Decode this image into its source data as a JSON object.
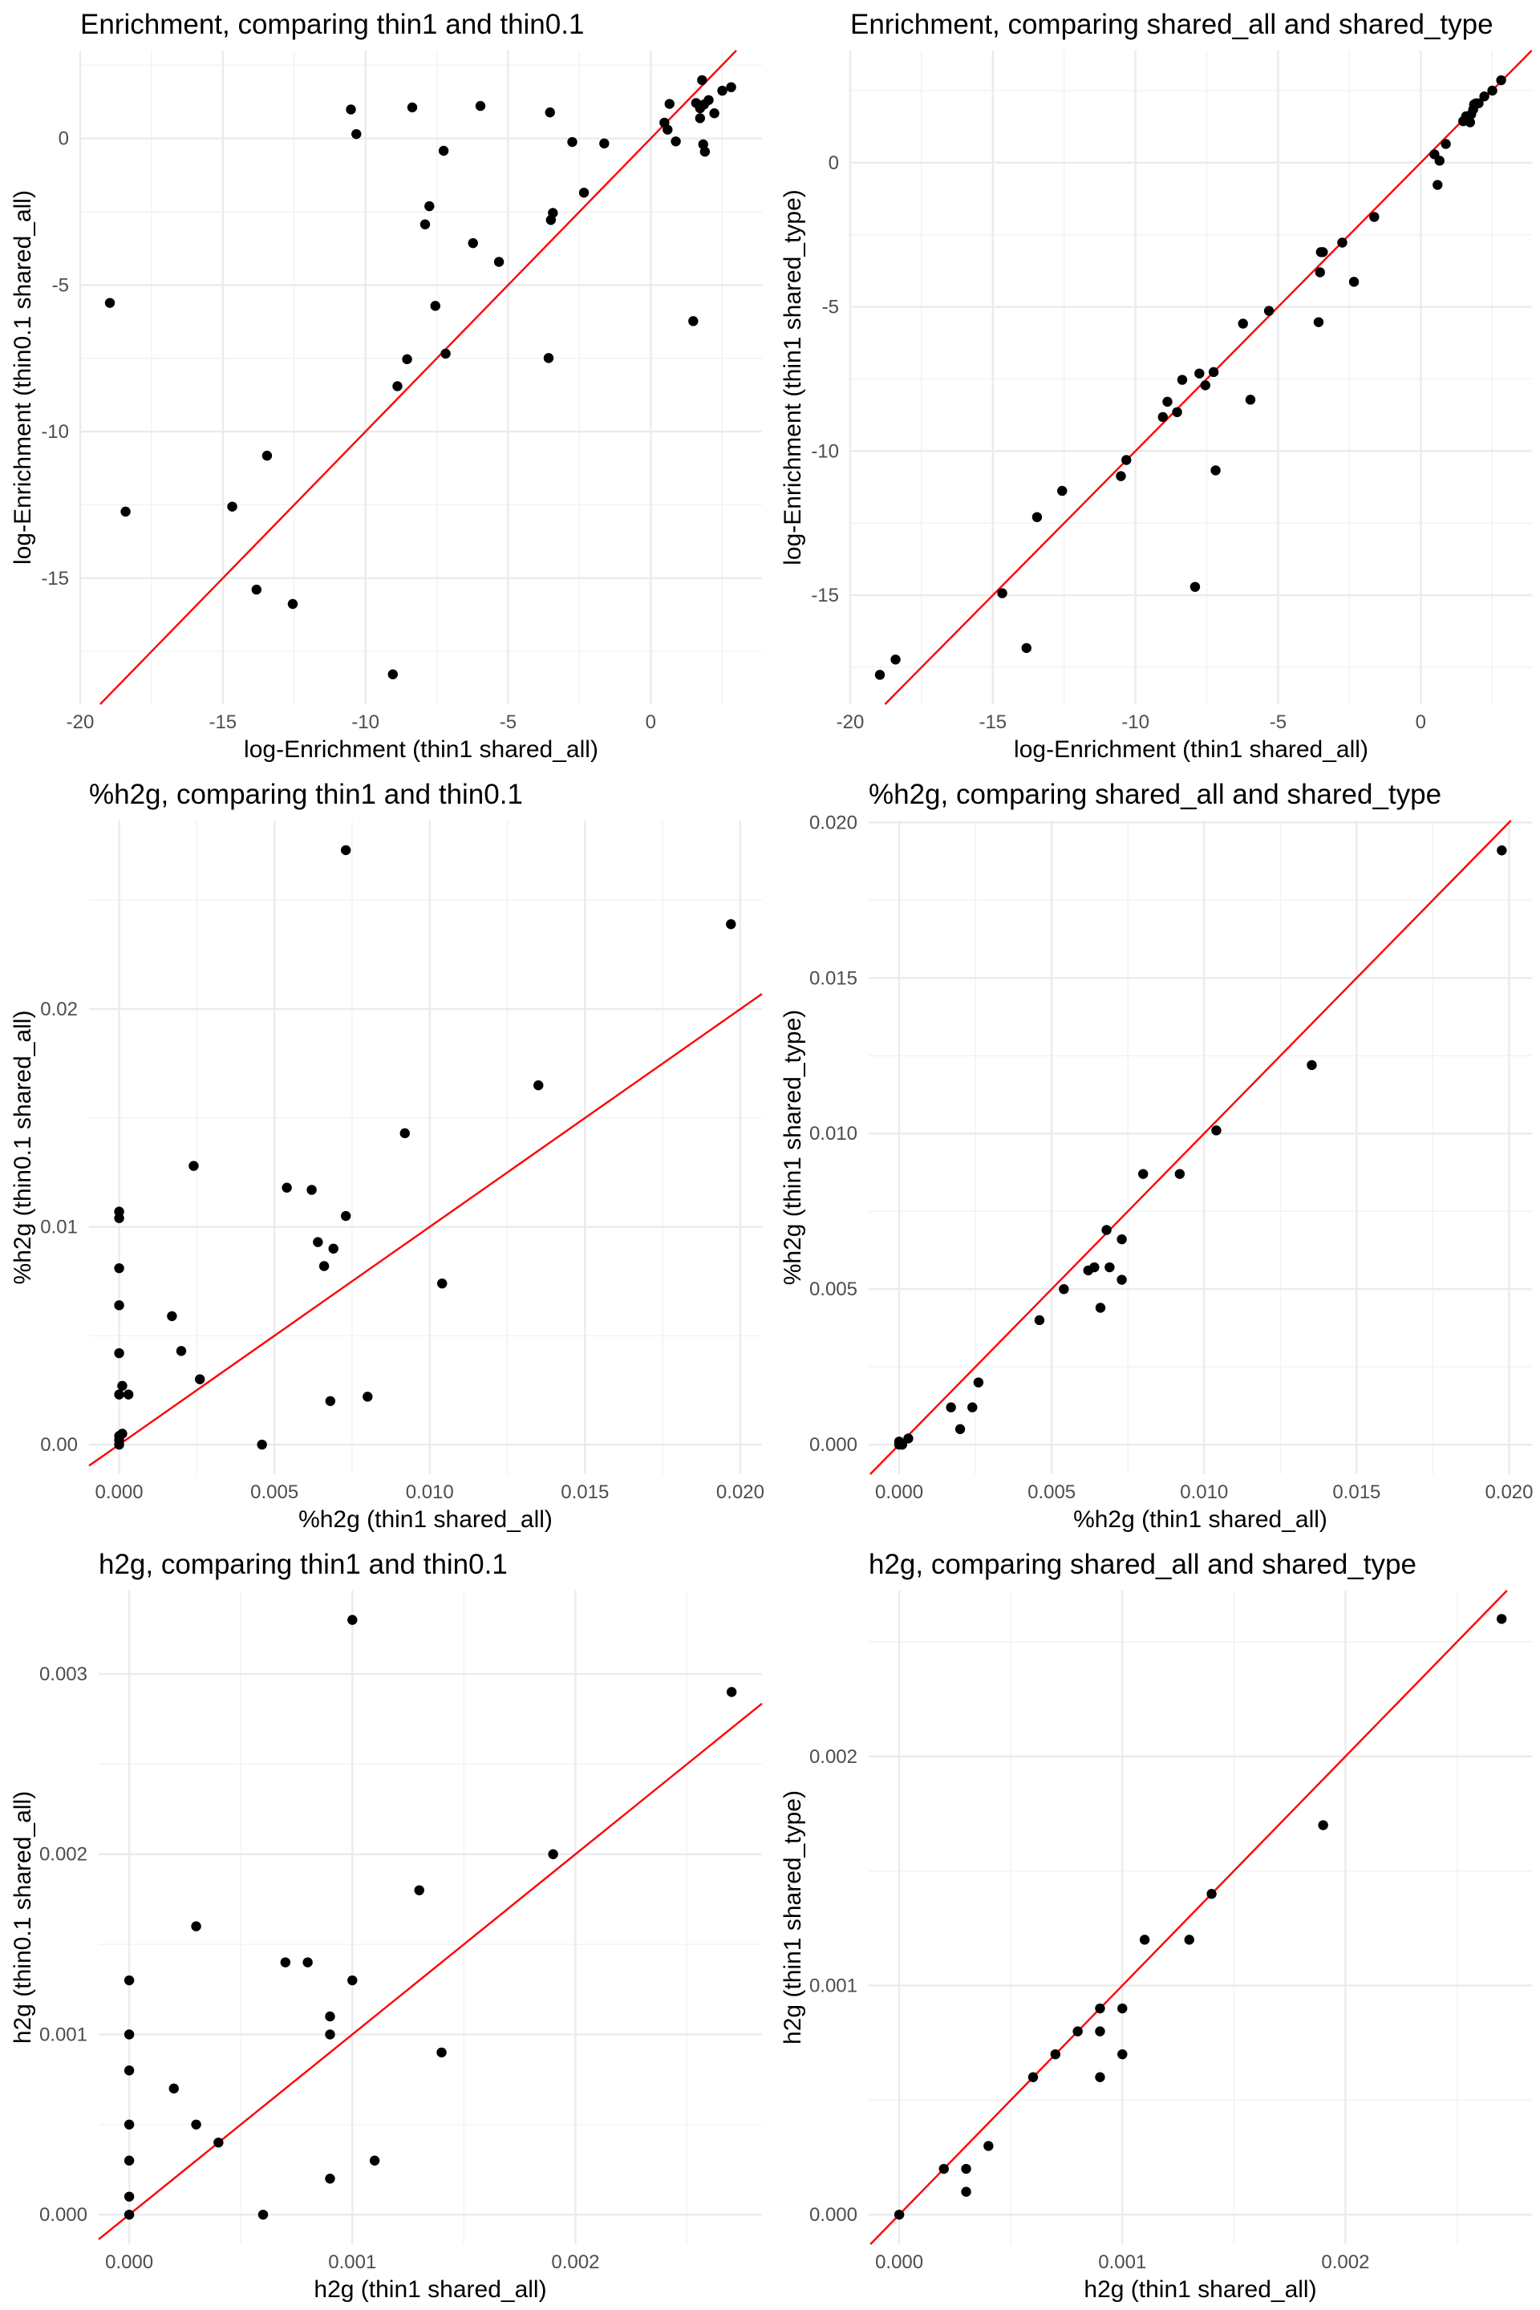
{
  "colors": {
    "points": "#000000",
    "reference_line": "#ff0000",
    "grid": "#ebebeb"
  },
  "chart_data": [
    {
      "type": "scatter",
      "title": "Enrichment, comparing thin1 and thin0.1",
      "xlabel": "log-Enrichment (thin1 shared_all)",
      "ylabel": "log-Enrichment (thin0.1 shared_all)",
      "xlim": [
        -20,
        3.9
      ],
      "ylim": [
        -19.3,
        3.0
      ],
      "xticks": [
        -20,
        -15,
        -10,
        -5,
        0
      ],
      "xtick_labels": [
        "-20",
        "-15",
        "-10",
        "-5",
        "0"
      ],
      "yticks": [
        -15,
        -10,
        -5,
        0
      ],
      "ytick_labels": [
        "-15",
        "-10",
        "-5",
        "0"
      ],
      "reference_line": "y = x",
      "points": [
        [
          -10.51,
          0.99
        ],
        [
          -10.32,
          0.15
        ],
        [
          -8.36,
          1.06
        ],
        [
          -5.97,
          1.11
        ],
        [
          -3.53,
          0.89
        ],
        [
          -7.26,
          -0.42
        ],
        [
          -7.76,
          -2.31
        ],
        [
          -7.91,
          -2.93
        ],
        [
          -2.75,
          -0.12
        ],
        [
          -1.63,
          -0.17
        ],
        [
          -2.34,
          -1.85
        ],
        [
          -3.43,
          -2.54
        ],
        [
          -3.5,
          -2.78
        ],
        [
          -6.23,
          -3.57
        ],
        [
          -5.32,
          -4.21
        ],
        [
          -18.96,
          -5.61
        ],
        [
          -7.55,
          -5.71
        ],
        [
          -8.54,
          -7.53
        ],
        [
          -7.19,
          -7.34
        ],
        [
          -3.58,
          -7.49
        ],
        [
          -8.88,
          -8.45
        ],
        [
          1.49,
          -6.23
        ],
        [
          -13.45,
          -10.82
        ],
        [
          -18.41,
          -12.73
        ],
        [
          -14.67,
          -12.56
        ],
        [
          -13.82,
          -15.39
        ],
        [
          -12.55,
          -15.88
        ],
        [
          -9.04,
          -18.28
        ],
        [
          0.48,
          0.54
        ],
        [
          0.59,
          0.3
        ],
        [
          0.66,
          1.18
        ],
        [
          0.88,
          -0.1
        ],
        [
          1.8,
          1.99
        ],
        [
          1.59,
          1.21
        ],
        [
          1.73,
          1.03
        ],
        [
          1.73,
          0.69
        ],
        [
          1.87,
          1.16
        ],
        [
          2.03,
          1.31
        ],
        [
          2.23,
          0.86
        ],
        [
          1.84,
          -0.2
        ],
        [
          1.9,
          -0.45
        ],
        [
          2.51,
          1.63
        ],
        [
          2.82,
          1.75
        ]
      ]
    },
    {
      "type": "scatter",
      "title": "Enrichment, comparing shared_all and shared_type",
      "xlabel": "log-Enrichment (thin1 shared_all)",
      "ylabel": "log-Enrichment (thin1 shared_type)",
      "xlim": [
        -20,
        3.9
      ],
      "ylim": [
        -18.78,
        3.89
      ],
      "xticks": [
        -20,
        -15,
        -10,
        -5,
        0
      ],
      "xtick_labels": [
        "-20",
        "-15",
        "-10",
        "-5",
        "0"
      ],
      "yticks": [
        -15,
        -10,
        -5,
        0
      ],
      "ytick_labels": [
        "-15",
        "-10",
        "-5",
        "0"
      ],
      "reference_line": "y = x",
      "points": [
        [
          -18.96,
          -17.76
        ],
        [
          -18.41,
          -17.23
        ],
        [
          -14.67,
          -14.93
        ],
        [
          -13.82,
          -16.83
        ],
        [
          -13.45,
          -12.29
        ],
        [
          -12.57,
          -11.38
        ],
        [
          -10.51,
          -10.87
        ],
        [
          -10.32,
          -10.31
        ],
        [
          -9.04,
          -8.82
        ],
        [
          -8.88,
          -8.29
        ],
        [
          -8.54,
          -8.65
        ],
        [
          -8.36,
          -7.53
        ],
        [
          -7.91,
          -14.71
        ],
        [
          -7.76,
          -7.31
        ],
        [
          -7.55,
          -7.72
        ],
        [
          -7.26,
          -7.26
        ],
        [
          -7.19,
          -10.67
        ],
        [
          -6.23,
          -5.58
        ],
        [
          -5.97,
          -8.22
        ],
        [
          -5.32,
          -5.14
        ],
        [
          -3.58,
          -5.53
        ],
        [
          -3.53,
          -3.8
        ],
        [
          -3.5,
          -3.1
        ],
        [
          -3.43,
          -3.1
        ],
        [
          -2.75,
          -2.77
        ],
        [
          -2.34,
          -4.13
        ],
        [
          -1.63,
          -1.88
        ],
        [
          0.48,
          0.29
        ],
        [
          0.66,
          0.07
        ],
        [
          0.59,
          -0.77
        ],
        [
          0.88,
          0.65
        ],
        [
          1.49,
          1.44
        ],
        [
          1.59,
          1.61
        ],
        [
          1.73,
          1.4
        ],
        [
          1.77,
          1.68
        ],
        [
          1.84,
          1.85
        ],
        [
          1.87,
          2.02
        ],
        [
          1.94,
          2.06
        ],
        [
          2.03,
          2.06
        ],
        [
          2.23,
          2.3
        ],
        [
          2.51,
          2.5
        ],
        [
          2.82,
          2.86
        ]
      ]
    },
    {
      "type": "scatter",
      "title": "%h2g, comparing thin1 and thin0.1",
      "xlabel": "%h2g (thin1 shared_all)",
      "ylabel": "%h2g (thin0.1 shared_all)",
      "xlim": [
        -0.00097,
        0.0207
      ],
      "ylim": [
        -0.00136,
        0.02866
      ],
      "xticks": [
        0,
        0.005,
        0.01,
        0.015,
        0.02
      ],
      "xtick_labels": [
        "0.000",
        "0.005",
        "0.010",
        "0.015",
        "0.020"
      ],
      "yticks": [
        0,
        0.01,
        0.02
      ],
      "ytick_labels": [
        "0.00",
        "0.01",
        "0.02"
      ],
      "reference_line": "y = x",
      "points": [
        [
          0.0073,
          0.0273
        ],
        [
          0.0197,
          0.0239
        ],
        [
          0.0135,
          0.0165
        ],
        [
          0.0092,
          0.0143
        ],
        [
          0.0024,
          0.0128
        ],
        [
          0.0054,
          0.0118
        ],
        [
          0.0062,
          0.0117
        ],
        [
          0.0073,
          0.0105
        ],
        [
          0.0064,
          0.0093
        ],
        [
          0.0069,
          0.009
        ],
        [
          0.0066,
          0.0082
        ],
        [
          0.0104,
          0.0074
        ],
        [
          0.0017,
          0.0059
        ],
        [
          0.002,
          0.0043
        ],
        [
          0.0026,
          0.003
        ],
        [
          0.0068,
          0.002
        ],
        [
          0.008,
          0.0022
        ],
        [
          0.0046,
          0.0
        ],
        [
          0.0,
          0.0107
        ],
        [
          0.0,
          0.0104
        ],
        [
          0.0,
          0.0081
        ],
        [
          0.0,
          0.0064
        ],
        [
          0.0,
          0.0042
        ],
        [
          0.0001,
          0.0027
        ],
        [
          0.0,
          0.0023
        ],
        [
          0.0003,
          0.0023
        ],
        [
          0.0,
          0.0004
        ],
        [
          0.0001,
          0.0005
        ],
        [
          0.0,
          0.0002
        ],
        [
          0.0,
          0.0
        ]
      ]
    },
    {
      "type": "scatter",
      "title": "%h2g, comparing shared_all and shared_type",
      "xlabel": "%h2g (thin1 shared_all)",
      "ylabel": "%h2g (thin1 shared_type)",
      "xlim": [
        -0.001,
        0.02075
      ],
      "ylim": [
        -0.00095,
        0.02006
      ],
      "xticks": [
        0,
        0.005,
        0.01,
        0.015,
        0.02
      ],
      "xtick_labels": [
        "0.000",
        "0.005",
        "0.010",
        "0.015",
        "0.020"
      ],
      "yticks": [
        0,
        0.005,
        0.01,
        0.015,
        0.02
      ],
      "ytick_labels": [
        "0.000",
        "0.005",
        "0.010",
        "0.015",
        "0.020"
      ],
      "reference_line": "y = x",
      "points": [
        [
          0.01976,
          0.0191
        ],
        [
          0.01353,
          0.0122
        ],
        [
          0.0104,
          0.0101
        ],
        [
          0.008,
          0.0087
        ],
        [
          0.0092,
          0.0087
        ],
        [
          0.0068,
          0.0069
        ],
        [
          0.0073,
          0.0066
        ],
        [
          0.0062,
          0.0056
        ],
        [
          0.0064,
          0.0057
        ],
        [
          0.0069,
          0.0057
        ],
        [
          0.0073,
          0.0053
        ],
        [
          0.0054,
          0.005
        ],
        [
          0.0066,
          0.0044
        ],
        [
          0.0046,
          0.004
        ],
        [
          0.0026,
          0.002
        ],
        [
          0.0017,
          0.0012
        ],
        [
          0.0024,
          0.0012
        ],
        [
          0.002,
          0.0005
        ],
        [
          0.0003,
          0.0002
        ],
        [
          0.0,
          0.0001
        ],
        [
          0.0001,
          0.0
        ],
        [
          0.0,
          0.0
        ]
      ]
    },
    {
      "type": "scatter",
      "title": "h2g, comparing thin1 and thin0.1",
      "xlabel": "h2g (thin1 shared_all)",
      "ylabel": "h2g (thin0.1 shared_all)",
      "xlim": [
        -0.000137,
        0.002836
      ],
      "ylim": [
        -0.000164,
        0.003463
      ],
      "xticks": [
        0,
        0.001,
        0.002
      ],
      "xtick_labels": [
        "0.000",
        "0.001",
        "0.002"
      ],
      "yticks": [
        0,
        0.001,
        0.002,
        0.003
      ],
      "ytick_labels": [
        "0.000",
        "0.001",
        "0.002",
        "0.003"
      ],
      "reference_line": "y = x",
      "points": [
        [
          0.001,
          0.0033
        ],
        [
          0.0027,
          0.0029
        ],
        [
          0.0019,
          0.002
        ],
        [
          0.0013,
          0.0018
        ],
        [
          0.0003,
          0.0016
        ],
        [
          0.0007,
          0.0014
        ],
        [
          0.0008,
          0.0014
        ],
        [
          0.001,
          0.0013
        ],
        [
          0.0009,
          0.0011
        ],
        [
          0.0009,
          0.001
        ],
        [
          0.0014,
          0.0009
        ],
        [
          0.0002,
          0.0007
        ],
        [
          0.0003,
          0.0005
        ],
        [
          0.0004,
          0.0004
        ],
        [
          0.0011,
          0.0003
        ],
        [
          0.0009,
          0.0002
        ],
        [
          0.0006,
          0.0
        ],
        [
          0.0,
          0.0013
        ],
        [
          0.0,
          0.001
        ],
        [
          0.0,
          0.0008
        ],
        [
          0.0,
          0.0005
        ],
        [
          0.0,
          0.0003
        ],
        [
          0.0,
          0.0001
        ],
        [
          0.0,
          0.0
        ]
      ]
    },
    {
      "type": "scatter",
      "title": "h2g, comparing shared_all and shared_type",
      "xlabel": "h2g (thin1 shared_all)",
      "ylabel": "h2g (thin1 shared_type)",
      "xlim": [
        -0.000137,
        0.002836
      ],
      "ylim": [
        -0.000129,
        0.002724
      ],
      "xticks": [
        0,
        0.001,
        0.002
      ],
      "xtick_labels": [
        "0.000",
        "0.001",
        "0.002"
      ],
      "yticks": [
        0,
        0.001,
        0.002
      ],
      "ytick_labels": [
        "0.000",
        "0.001",
        "0.002"
      ],
      "reference_line": "y = x",
      "points": [
        [
          0.0027,
          0.0026
        ],
        [
          0.0019,
          0.0017
        ],
        [
          0.0014,
          0.0014
        ],
        [
          0.0011,
          0.0012
        ],
        [
          0.0013,
          0.0012
        ],
        [
          0.0009,
          0.0009
        ],
        [
          0.001,
          0.0009
        ],
        [
          0.0008,
          0.0008
        ],
        [
          0.0009,
          0.0008
        ],
        [
          0.0007,
          0.0007
        ],
        [
          0.001,
          0.0007
        ],
        [
          0.0006,
          0.0006
        ],
        [
          0.0009,
          0.0006
        ],
        [
          0.0004,
          0.0003
        ],
        [
          0.0002,
          0.0002
        ],
        [
          0.0003,
          0.0002
        ],
        [
          0.0003,
          0.0001
        ],
        [
          0.0,
          0.0
        ]
      ]
    }
  ]
}
